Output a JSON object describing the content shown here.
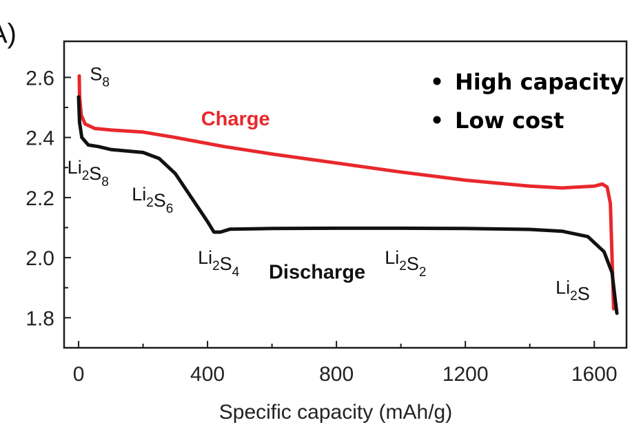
{
  "panel_label": "A)",
  "chart_data": {
    "type": "line",
    "xlabel": "Specific capacity (mAh/g)",
    "ylabel": "",
    "xlim": [
      -45,
      1700
    ],
    "ylim": [
      1.7,
      2.72
    ],
    "x_ticks": [
      0,
      400,
      800,
      1200,
      1600
    ],
    "x_minor_ticks": [
      200,
      600,
      1000,
      1400
    ],
    "y_ticks": [
      1.8,
      2.0,
      2.2,
      2.4,
      2.6
    ],
    "y_minor_ticks": [
      1.9,
      2.1,
      2.3,
      2.5
    ],
    "x_tick_labels": [
      "0",
      "400",
      "800",
      "1200",
      "1600"
    ],
    "y_tick_labels": [
      "1.8",
      "2.0",
      "2.2",
      "2.4",
      "2.6"
    ],
    "grid": false,
    "series": [
      {
        "name": "Charge",
        "color": "#e8282c",
        "points": [
          [
            1660,
            1.83
          ],
          [
            1650,
            2.18
          ],
          [
            1640,
            2.235
          ],
          [
            1625,
            2.245
          ],
          [
            1600,
            2.238
          ],
          [
            1500,
            2.232
          ],
          [
            1400,
            2.238
          ],
          [
            1200,
            2.258
          ],
          [
            1000,
            2.285
          ],
          [
            800,
            2.315
          ],
          [
            600,
            2.345
          ],
          [
            450,
            2.37
          ],
          [
            300,
            2.4
          ],
          [
            200,
            2.418
          ],
          [
            100,
            2.425
          ],
          [
            50,
            2.43
          ],
          [
            20,
            2.445
          ],
          [
            8,
            2.475
          ],
          [
            3,
            2.54
          ],
          [
            2,
            2.605
          ]
        ]
      },
      {
        "name": "Discharge",
        "color": "#111111",
        "points": [
          [
            0,
            2.535
          ],
          [
            3,
            2.45
          ],
          [
            10,
            2.4
          ],
          [
            30,
            2.375
          ],
          [
            60,
            2.37
          ],
          [
            100,
            2.36
          ],
          [
            200,
            2.35
          ],
          [
            250,
            2.33
          ],
          [
            300,
            2.28
          ],
          [
            350,
            2.2
          ],
          [
            400,
            2.12
          ],
          [
            420,
            2.085
          ],
          [
            440,
            2.085
          ],
          [
            470,
            2.095
          ],
          [
            600,
            2.097
          ],
          [
            800,
            2.098
          ],
          [
            1000,
            2.098
          ],
          [
            1200,
            2.097
          ],
          [
            1400,
            2.094
          ],
          [
            1500,
            2.088
          ],
          [
            1580,
            2.07
          ],
          [
            1630,
            2.02
          ],
          [
            1655,
            1.95
          ],
          [
            1665,
            1.86
          ],
          [
            1670,
            1.815
          ]
        ]
      }
    ],
    "annotations": [
      {
        "id": "s8",
        "base": "S",
        "sub": "8",
        "x": 35,
        "y": 2.59
      },
      {
        "id": "li2s8",
        "base": "Li",
        "sub": "2",
        "base2": "S",
        "sub2": "8",
        "x": -35,
        "y": 2.28
      },
      {
        "id": "li2s6",
        "base": "Li",
        "sub": "2",
        "base2": "S",
        "sub2": "6",
        "x": 165,
        "y": 2.19
      },
      {
        "id": "li2s4",
        "base": "Li",
        "sub": "2",
        "base2": "S",
        "sub2": "4",
        "x": 370,
        "y": 1.98
      },
      {
        "id": "li2s2",
        "base": "Li",
        "sub": "2",
        "base2": "S",
        "sub2": "2",
        "x": 950,
        "y": 1.98
      },
      {
        "id": "li2s",
        "base": "Li",
        "sub": "2",
        "base2": "S",
        "sub2": "",
        "x": 1480,
        "y": 1.88
      }
    ],
    "curve_labels": [
      {
        "text": "Charge",
        "color": "#e8282c",
        "x": 380,
        "y": 2.44
      },
      {
        "text": "Discharge",
        "color": "#111111",
        "x": 590,
        "y": 1.93
      }
    ]
  },
  "bullets": [
    "High capacity",
    "Low cost"
  ]
}
